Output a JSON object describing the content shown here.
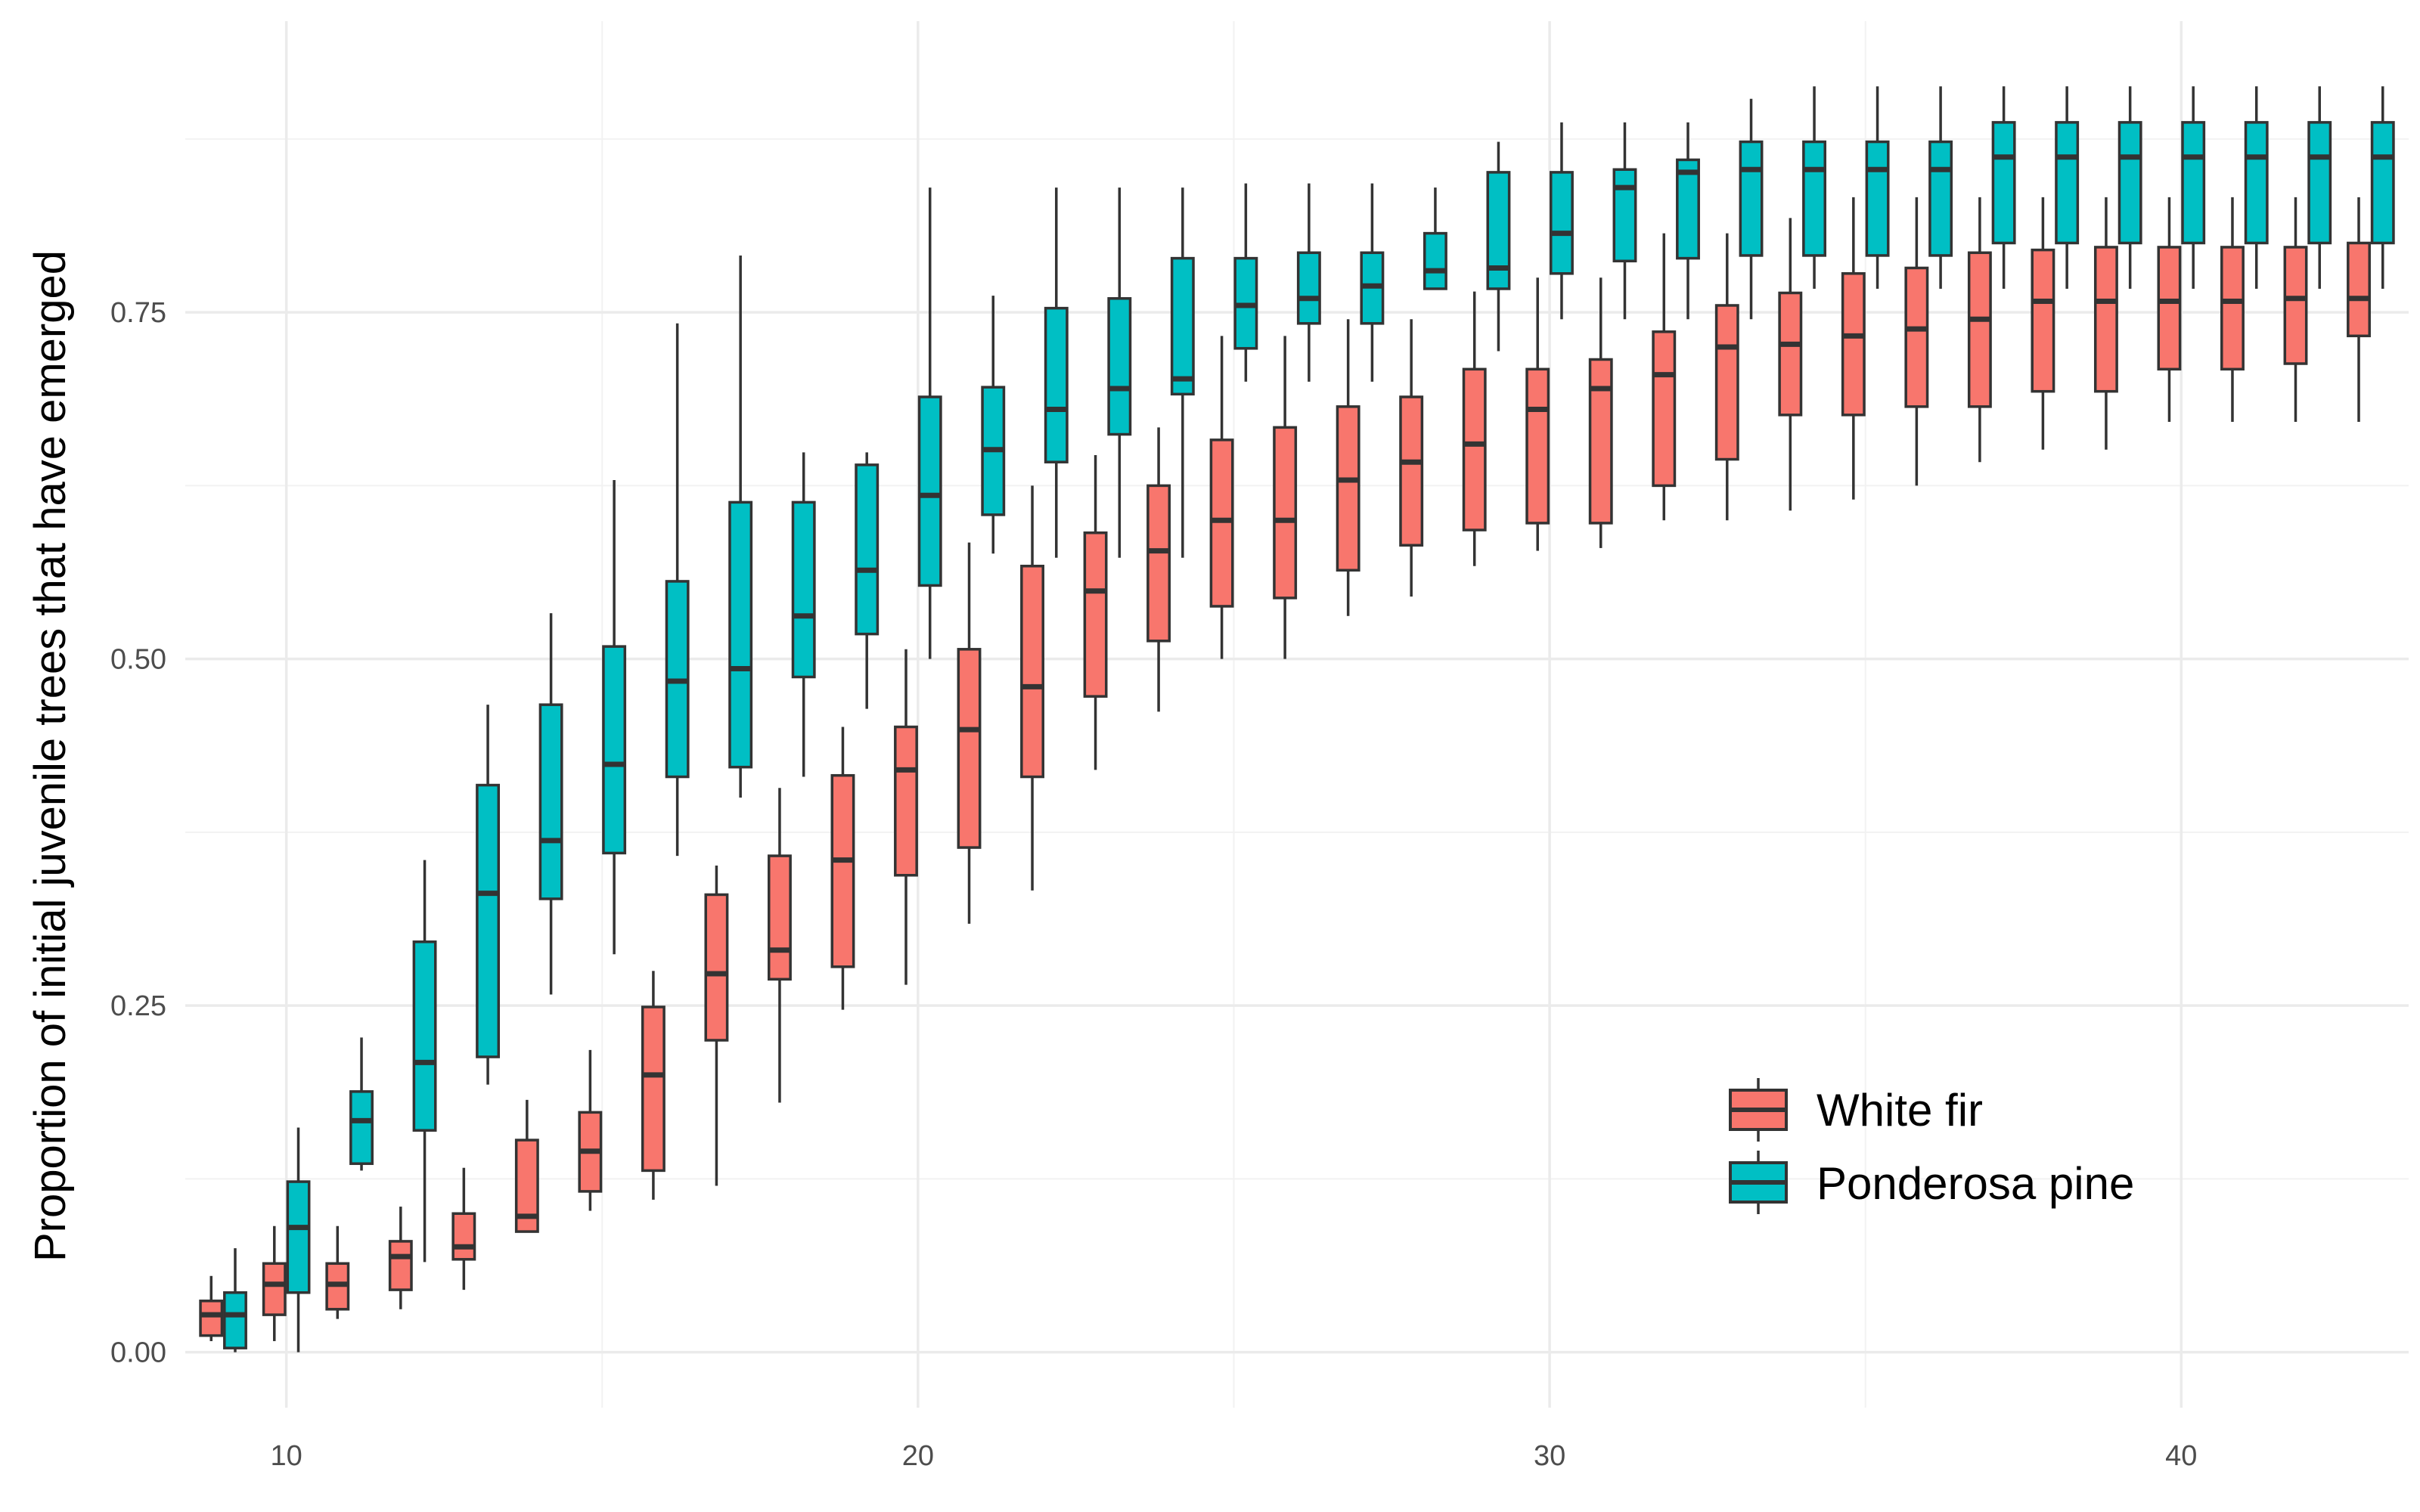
{
  "chart_data": {
    "type": "boxplot",
    "title": "",
    "xlabel": "",
    "ylabel": "Proportion of initial juvenile trees that have emerged",
    "xlim": [
      8.4,
      43.6
    ],
    "ylim": [
      -0.04,
      0.96
    ],
    "x_ticks": [
      10,
      20,
      30,
      40
    ],
    "y_ticks": [
      0.0,
      0.25,
      0.5,
      0.75
    ],
    "y_tick_labels": [
      "0.00",
      "0.25",
      "0.50",
      "0.75"
    ],
    "grid": true,
    "legend_position": "bottom-right",
    "series": [
      {
        "name": "White fir",
        "color": "#F8766D",
        "boxes": [
          {
            "x": 9,
            "min": 0.008,
            "q1": 0.012,
            "median": 0.027,
            "q3": 0.037,
            "max": 0.055
          },
          {
            "x": 10,
            "min": 0.008,
            "q1": 0.027,
            "median": 0.049,
            "q3": 0.064,
            "max": 0.091
          },
          {
            "x": 11,
            "min": 0.024,
            "q1": 0.031,
            "median": 0.049,
            "q3": 0.064,
            "max": 0.091
          },
          {
            "x": 12,
            "min": 0.031,
            "q1": 0.045,
            "median": 0.069,
            "q3": 0.08,
            "max": 0.105
          },
          {
            "x": 13,
            "min": 0.045,
            "q1": 0.067,
            "median": 0.076,
            "q3": 0.1,
            "max": 0.133
          },
          {
            "x": 14,
            "min": 0.087,
            "q1": 0.087,
            "median": 0.098,
            "q3": 0.153,
            "max": 0.182
          },
          {
            "x": 15,
            "min": 0.102,
            "q1": 0.116,
            "median": 0.145,
            "q3": 0.173,
            "max": 0.218
          },
          {
            "x": 16,
            "min": 0.11,
            "q1": 0.131,
            "median": 0.2,
            "q3": 0.249,
            "max": 0.275
          },
          {
            "x": 17,
            "min": 0.12,
            "q1": 0.225,
            "median": 0.273,
            "q3": 0.33,
            "max": 0.351
          },
          {
            "x": 18,
            "min": 0.18,
            "q1": 0.269,
            "median": 0.29,
            "q3": 0.358,
            "max": 0.407
          },
          {
            "x": 19,
            "min": 0.247,
            "q1": 0.278,
            "median": 0.355,
            "q3": 0.416,
            "max": 0.451
          },
          {
            "x": 20,
            "min": 0.265,
            "q1": 0.344,
            "median": 0.42,
            "q3": 0.451,
            "max": 0.507
          },
          {
            "x": 21,
            "min": 0.309,
            "q1": 0.364,
            "median": 0.449,
            "q3": 0.507,
            "max": 0.584
          },
          {
            "x": 22,
            "min": 0.333,
            "q1": 0.415,
            "median": 0.48,
            "q3": 0.567,
            "max": 0.625
          },
          {
            "x": 23,
            "min": 0.42,
            "q1": 0.473,
            "median": 0.549,
            "q3": 0.591,
            "max": 0.647
          },
          {
            "x": 24,
            "min": 0.462,
            "q1": 0.513,
            "median": 0.578,
            "q3": 0.625,
            "max": 0.667
          },
          {
            "x": 25,
            "min": 0.5,
            "q1": 0.538,
            "median": 0.6,
            "q3": 0.658,
            "max": 0.733
          },
          {
            "x": 26,
            "min": 0.5,
            "q1": 0.544,
            "median": 0.6,
            "q3": 0.667,
            "max": 0.733
          },
          {
            "x": 27,
            "min": 0.531,
            "q1": 0.564,
            "median": 0.629,
            "q3": 0.682,
            "max": 0.745
          },
          {
            "x": 28,
            "min": 0.545,
            "q1": 0.582,
            "median": 0.642,
            "q3": 0.689,
            "max": 0.745
          },
          {
            "x": 29,
            "min": 0.567,
            "q1": 0.593,
            "median": 0.655,
            "q3": 0.709,
            "max": 0.765
          },
          {
            "x": 30,
            "min": 0.578,
            "q1": 0.598,
            "median": 0.68,
            "q3": 0.709,
            "max": 0.775
          },
          {
            "x": 31,
            "min": 0.58,
            "q1": 0.598,
            "median": 0.695,
            "q3": 0.716,
            "max": 0.775
          },
          {
            "x": 32,
            "min": 0.6,
            "q1": 0.625,
            "median": 0.705,
            "q3": 0.736,
            "max": 0.807
          },
          {
            "x": 33,
            "min": 0.6,
            "q1": 0.644,
            "median": 0.725,
            "q3": 0.755,
            "max": 0.807
          },
          {
            "x": 34,
            "min": 0.607,
            "q1": 0.676,
            "median": 0.727,
            "q3": 0.764,
            "max": 0.818
          },
          {
            "x": 35,
            "min": 0.615,
            "q1": 0.676,
            "median": 0.733,
            "q3": 0.778,
            "max": 0.833
          },
          {
            "x": 36,
            "min": 0.625,
            "q1": 0.682,
            "median": 0.738,
            "q3": 0.782,
            "max": 0.833
          },
          {
            "x": 37,
            "min": 0.642,
            "q1": 0.682,
            "median": 0.745,
            "q3": 0.793,
            "max": 0.833
          },
          {
            "x": 38,
            "min": 0.651,
            "q1": 0.693,
            "median": 0.758,
            "q3": 0.795,
            "max": 0.833
          },
          {
            "x": 39,
            "min": 0.651,
            "q1": 0.693,
            "median": 0.758,
            "q3": 0.797,
            "max": 0.833
          },
          {
            "x": 40,
            "min": 0.671,
            "q1": 0.709,
            "median": 0.758,
            "q3": 0.797,
            "max": 0.833
          },
          {
            "x": 41,
            "min": 0.671,
            "q1": 0.709,
            "median": 0.758,
            "q3": 0.797,
            "max": 0.833
          },
          {
            "x": 42,
            "min": 0.671,
            "q1": 0.713,
            "median": 0.76,
            "q3": 0.797,
            "max": 0.833
          },
          {
            "x": 43,
            "min": 0.671,
            "q1": 0.733,
            "median": 0.76,
            "q3": 0.8,
            "max": 0.833
          }
        ]
      },
      {
        "name": "Ponderosa pine",
        "color": "#00BFC4",
        "boxes": [
          {
            "x": 9,
            "min": 0.0,
            "q1": 0.003,
            "median": 0.027,
            "q3": 0.043,
            "max": 0.075
          },
          {
            "x": 10,
            "min": 0.0,
            "q1": 0.043,
            "median": 0.09,
            "q3": 0.123,
            "max": 0.162
          },
          {
            "x": 11,
            "min": 0.131,
            "q1": 0.136,
            "median": 0.167,
            "q3": 0.188,
            "max": 0.227
          },
          {
            "x": 12,
            "min": 0.065,
            "q1": 0.16,
            "median": 0.209,
            "q3": 0.296,
            "max": 0.355
          },
          {
            "x": 13,
            "min": 0.193,
            "q1": 0.213,
            "median": 0.331,
            "q3": 0.409,
            "max": 0.467
          },
          {
            "x": 14,
            "min": 0.258,
            "q1": 0.327,
            "median": 0.369,
            "q3": 0.467,
            "max": 0.533
          },
          {
            "x": 15,
            "min": 0.287,
            "q1": 0.36,
            "median": 0.424,
            "q3": 0.509,
            "max": 0.629
          },
          {
            "x": 16,
            "min": 0.358,
            "q1": 0.415,
            "median": 0.484,
            "q3": 0.556,
            "max": 0.742
          },
          {
            "x": 17,
            "min": 0.4,
            "q1": 0.422,
            "median": 0.493,
            "q3": 0.613,
            "max": 0.791
          },
          {
            "x": 18,
            "min": 0.415,
            "q1": 0.487,
            "median": 0.531,
            "q3": 0.613,
            "max": 0.649
          },
          {
            "x": 19,
            "min": 0.464,
            "q1": 0.518,
            "median": 0.564,
            "q3": 0.64,
            "max": 0.649
          },
          {
            "x": 20,
            "min": 0.5,
            "q1": 0.553,
            "median": 0.618,
            "q3": 0.689,
            "max": 0.84
          },
          {
            "x": 21,
            "min": 0.576,
            "q1": 0.604,
            "median": 0.651,
            "q3": 0.696,
            "max": 0.762
          },
          {
            "x": 22,
            "min": 0.573,
            "q1": 0.642,
            "median": 0.68,
            "q3": 0.753,
            "max": 0.84
          },
          {
            "x": 23,
            "min": 0.573,
            "q1": 0.662,
            "median": 0.695,
            "q3": 0.76,
            "max": 0.84
          },
          {
            "x": 24,
            "min": 0.573,
            "q1": 0.691,
            "median": 0.702,
            "q3": 0.789,
            "max": 0.84
          },
          {
            "x": 25,
            "min": 0.7,
            "q1": 0.724,
            "median": 0.755,
            "q3": 0.789,
            "max": 0.843
          },
          {
            "x": 26,
            "min": 0.7,
            "q1": 0.742,
            "median": 0.76,
            "q3": 0.793,
            "max": 0.843
          },
          {
            "x": 27,
            "min": 0.7,
            "q1": 0.742,
            "median": 0.769,
            "q3": 0.793,
            "max": 0.843
          },
          {
            "x": 28,
            "min": 0.767,
            "q1": 0.767,
            "median": 0.78,
            "q3": 0.807,
            "max": 0.84
          },
          {
            "x": 29,
            "min": 0.722,
            "q1": 0.767,
            "median": 0.782,
            "q3": 0.851,
            "max": 0.873
          },
          {
            "x": 30,
            "min": 0.745,
            "q1": 0.778,
            "median": 0.807,
            "q3": 0.851,
            "max": 0.887
          },
          {
            "x": 31,
            "min": 0.745,
            "q1": 0.787,
            "median": 0.84,
            "q3": 0.853,
            "max": 0.887
          },
          {
            "x": 32,
            "min": 0.745,
            "q1": 0.789,
            "median": 0.851,
            "q3": 0.86,
            "max": 0.887
          },
          {
            "x": 33,
            "min": 0.745,
            "q1": 0.791,
            "median": 0.853,
            "q3": 0.873,
            "max": 0.904
          },
          {
            "x": 34,
            "min": 0.767,
            "q1": 0.791,
            "median": 0.853,
            "q3": 0.873,
            "max": 0.913
          },
          {
            "x": 35,
            "min": 0.767,
            "q1": 0.791,
            "median": 0.853,
            "q3": 0.873,
            "max": 0.913
          },
          {
            "x": 36,
            "min": 0.767,
            "q1": 0.791,
            "median": 0.853,
            "q3": 0.873,
            "max": 0.913
          },
          {
            "x": 37,
            "min": 0.767,
            "q1": 0.8,
            "median": 0.862,
            "q3": 0.887,
            "max": 0.913
          },
          {
            "x": 38,
            "min": 0.767,
            "q1": 0.8,
            "median": 0.862,
            "q3": 0.887,
            "max": 0.913
          },
          {
            "x": 39,
            "min": 0.767,
            "q1": 0.8,
            "median": 0.862,
            "q3": 0.887,
            "max": 0.913
          },
          {
            "x": 40,
            "min": 0.767,
            "q1": 0.8,
            "median": 0.862,
            "q3": 0.887,
            "max": 0.913
          },
          {
            "x": 41,
            "min": 0.767,
            "q1": 0.8,
            "median": 0.862,
            "q3": 0.887,
            "max": 0.913
          },
          {
            "x": 42,
            "min": 0.767,
            "q1": 0.8,
            "median": 0.862,
            "q3": 0.887,
            "max": 0.913
          },
          {
            "x": 43,
            "min": 0.767,
            "q1": 0.8,
            "median": 0.862,
            "q3": 0.887,
            "max": 0.913
          }
        ]
      }
    ]
  }
}
